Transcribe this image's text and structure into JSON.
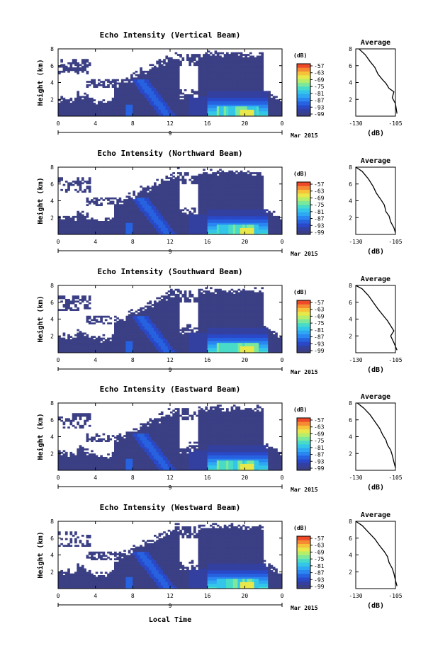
{
  "figure": {
    "date_label": "Mar 2015",
    "xlabel": "Local Time",
    "ylabel": "Height (km)",
    "unit": "(dB)",
    "day_label": "9",
    "x_ticks": [
      "0",
      "4",
      "8",
      "12",
      "16",
      "20",
      "0"
    ],
    "y_ticks": [
      "2",
      "4",
      "6",
      "8"
    ],
    "colorbar_ticks": [
      "-57",
      "-63",
      "-69",
      "-75",
      "-81",
      "-87",
      "-93",
      "-99"
    ],
    "colorbar_colors": [
      "#3b3f84",
      "#3340a0",
      "#2a49c8",
      "#2762e0",
      "#2a86f0",
      "#2ea8f2",
      "#34c6e8",
      "#48dcc8",
      "#7de89a",
      "#b6ee6a",
      "#e8e84a",
      "#f6c23a",
      "#f68a32",
      "#ee4a2a"
    ],
    "profile_title": "Average",
    "profile_xticks": [
      "-130",
      "-105"
    ],
    "profile_yticks": [
      "2",
      "4",
      "6",
      "8"
    ],
    "profile_unit": "(dB)"
  },
  "chart_data": [
    {
      "type": "heatmap",
      "title": "Echo Intensity (Vertical Beam)",
      "xlabel": "Local Time",
      "ylabel": "Height (km)",
      "x_range_hours": [
        0,
        24
      ],
      "y_range_km": [
        0,
        8
      ],
      "colorbar": {
        "label": "(dB)",
        "range": [
          -99,
          -57
        ]
      },
      "profile": {
        "title": "Average",
        "xlabel": "(dB)",
        "xlim": [
          -130,
          -105
        ],
        "ylim": [
          0,
          8
        ],
        "x": [
          -128,
          -124,
          -121,
          -118,
          -116,
          -113,
          -111,
          -109,
          -106,
          -107,
          -105,
          -104
        ],
        "y": [
          8,
          7.3,
          6.5,
          5.8,
          5.0,
          4.3,
          3.9,
          3.3,
          2.9,
          2.2,
          1.5,
          0.3
        ]
      }
    },
    {
      "type": "heatmap",
      "title": "Echo Intensity (Northward Beam)",
      "xlabel": "Local Time",
      "ylabel": "Height (km)",
      "x_range_hours": [
        0,
        24
      ],
      "y_range_km": [
        0,
        8
      ],
      "colorbar": {
        "label": "(dB)",
        "range": [
          -99,
          -57
        ]
      },
      "profile": {
        "title": "Average",
        "xlabel": "(dB)",
        "xlim": [
          -130,
          -105
        ],
        "ylim": [
          0,
          8
        ],
        "x": [
          -130,
          -126,
          -122,
          -119,
          -117,
          -114,
          -112,
          -111,
          -109,
          -108,
          -106,
          -105
        ],
        "y": [
          8,
          7.5,
          6.6,
          5.7,
          4.9,
          4.1,
          3.5,
          2.7,
          2.2,
          1.5,
          0.8,
          0.2
        ]
      }
    },
    {
      "type": "heatmap",
      "title": "Echo Intensity (Southward Beam)",
      "xlabel": "Local Time",
      "ylabel": "Height (km)",
      "x_range_hours": [
        0,
        24
      ],
      "y_range_km": [
        0,
        8
      ],
      "colorbar": {
        "label": "(dB)",
        "range": [
          -99,
          -57
        ]
      },
      "profile": {
        "title": "Average",
        "xlabel": "(dB)",
        "xlim": [
          -130,
          -105
        ],
        "ylim": [
          0,
          8
        ],
        "x": [
          -130,
          -126,
          -122,
          -119,
          -116,
          -113,
          -110,
          -108,
          -106,
          -108,
          -106,
          -104
        ],
        "y": [
          8,
          7.6,
          6.8,
          6.0,
          5.2,
          4.5,
          3.8,
          3.2,
          2.6,
          2.0,
          1.2,
          0.3
        ]
      }
    },
    {
      "type": "heatmap",
      "title": "Echo Intensity (Eastward Beam)",
      "xlabel": "Local Time",
      "ylabel": "Height (km)",
      "x_range_hours": [
        0,
        24
      ],
      "y_range_km": [
        0,
        8
      ],
      "colorbar": {
        "label": "(dB)",
        "range": [
          -99,
          -57
        ]
      },
      "profile": {
        "title": "Average",
        "xlabel": "(dB)",
        "xlim": [
          -130,
          -105
        ],
        "ylim": [
          0,
          8
        ],
        "x": [
          -129,
          -125,
          -121,
          -118,
          -115,
          -113,
          -111,
          -110,
          -108,
          -107,
          -106,
          -105
        ],
        "y": [
          8,
          7.4,
          6.6,
          5.8,
          5.0,
          4.2,
          3.6,
          3.0,
          2.4,
          1.8,
          1.0,
          0.3
        ]
      }
    },
    {
      "type": "heatmap",
      "title": "Echo Intensity (Westward Beam)",
      "xlabel": "Local Time",
      "ylabel": "Height (km)",
      "x_range_hours": [
        0,
        24
      ],
      "y_range_km": [
        0,
        8
      ],
      "colorbar": {
        "label": "(dB)",
        "range": [
          -99,
          -57
        ]
      },
      "profile": {
        "title": "Average",
        "xlabel": "(dB)",
        "xlim": [
          -130,
          -105
        ],
        "ylim": [
          0,
          8
        ],
        "x": [
          -130,
          -126,
          -122,
          -118,
          -115,
          -112,
          -110,
          -109,
          -107,
          -106,
          -105,
          -104
        ],
        "y": [
          8,
          7.5,
          6.7,
          5.9,
          5.1,
          4.4,
          3.8,
          3.1,
          2.4,
          1.8,
          1.0,
          0.3
        ]
      }
    }
  ]
}
